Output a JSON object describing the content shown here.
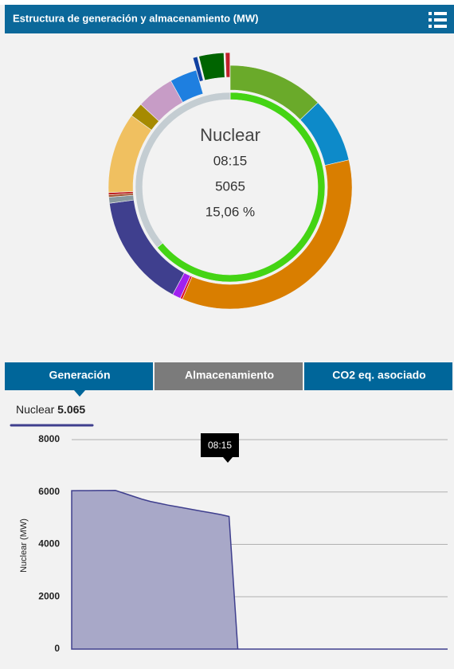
{
  "header": {
    "title": "Estructura de generación y almacenamiento (MW)"
  },
  "tabs": [
    "Generación",
    "Almacenamiento",
    "CO2 eq. asociado"
  ],
  "active_tab": 0,
  "chart_data": [
    {
      "type": "donut",
      "values": [
        12.8,
        8.6,
        35.0,
        0.3,
        1.1,
        15.06,
        0.8,
        0.3,
        0.3,
        10.7,
        1.9,
        5.0,
        3.6,
        0.6,
        3.3,
        0.6
      ],
      "colors": [
        "#6aaa2a",
        "#0d8ac9",
        "#d97e00",
        "#e0102a",
        "#a020f0",
        "#3f3f8e",
        "#8a9aa0",
        "#a0522d",
        "#c02020",
        "#f0c060",
        "#a68a00",
        "#c79cc6",
        "#1e7fe0",
        "#1040a0",
        "#006400",
        "#c0202a"
      ],
      "exploded": [
        false,
        false,
        false,
        false,
        false,
        false,
        false,
        false,
        false,
        false,
        false,
        false,
        false,
        true,
        true,
        true
      ],
      "inner": {
        "values": [
          64,
          36
        ],
        "colors": [
          "#44d414",
          "#c4cdd2"
        ]
      },
      "center": {
        "name": "Nuclear",
        "time": "08:15",
        "value": 5065,
        "share": "15,06 %"
      }
    },
    {
      "type": "area",
      "ylabel": "Nuclear (MW)",
      "categories": [
        null,
        null,
        null,
        null,
        null,
        null,
        null,
        null,
        null,
        null,
        null,
        null,
        null,
        null,
        null,
        null,
        null,
        null,
        null,
        null,
        null,
        null,
        null,
        null,
        null,
        null,
        null,
        null,
        null,
        null,
        null,
        null,
        null,
        null,
        null,
        null,
        null,
        null,
        null,
        null,
        null,
        null,
        null,
        null
      ],
      "series": [
        {
          "name": "Nuclear",
          "color": "#3f3f8e",
          "fill": "#a8a8c8",
          "current_label": "5.065",
          "values": [
            6050,
            6052,
            6054,
            6056,
            6058,
            6060,
            5950,
            5840,
            5730,
            5640,
            5570,
            5500,
            5440,
            5380,
            5320,
            5260,
            5200,
            5140,
            5065,
            0,
            0,
            0,
            0,
            0,
            0,
            0,
            0,
            0,
            0,
            0,
            0,
            0,
            0,
            0,
            0,
            0,
            0,
            0,
            0,
            0,
            0,
            0,
            0,
            0
          ]
        }
      ],
      "ylim": [
        0,
        8000
      ],
      "yticks": [
        0,
        2000,
        4000,
        6000,
        8000
      ],
      "grid": true,
      "tooltip": "08:15"
    }
  ]
}
